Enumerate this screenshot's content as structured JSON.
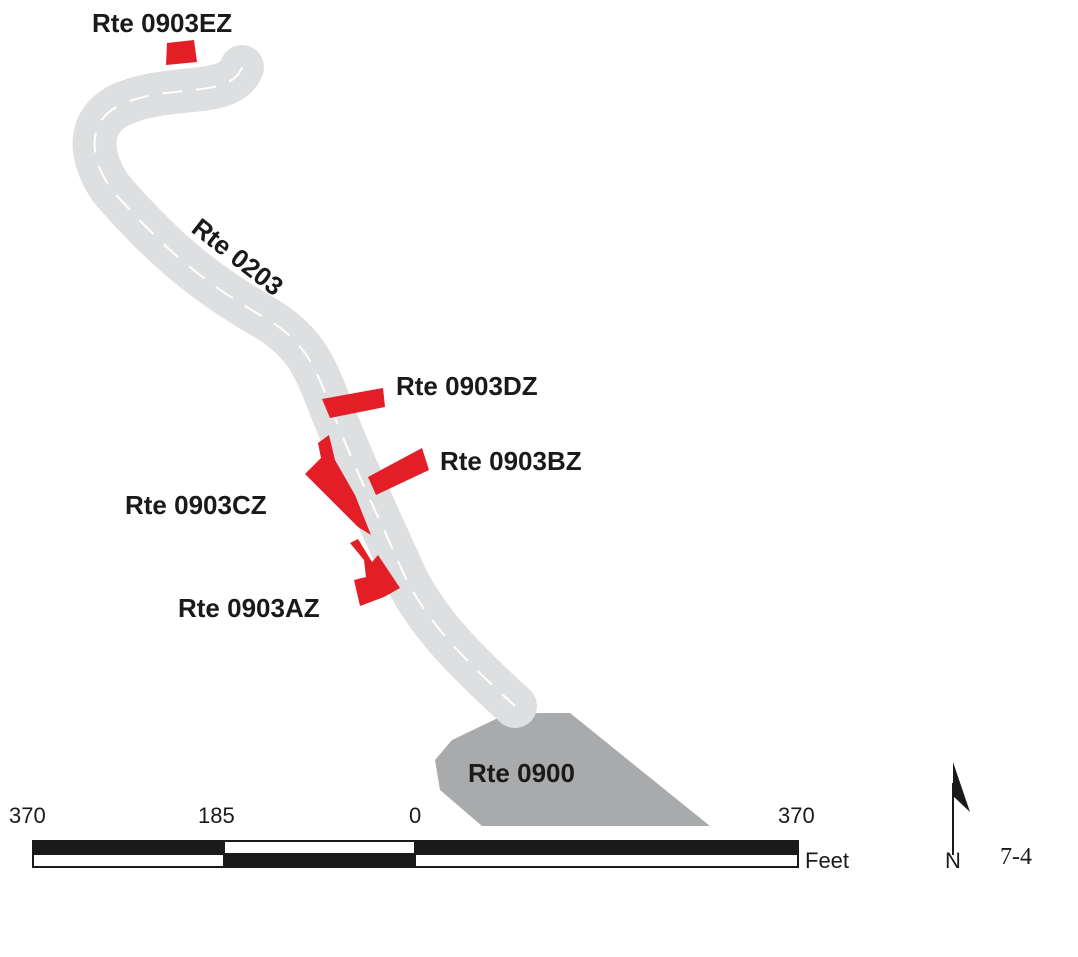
{
  "map": {
    "labels": {
      "route_0903ez": "Rte 0903EZ",
      "route_0203": "Rte 0203",
      "route_0903dz": "Rte 0903DZ",
      "route_0903bz": "Rte 0903BZ",
      "route_0903cz": "Rte 0903CZ",
      "route_0903az": "Rte 0903AZ",
      "route_0900": "Rte 0900"
    },
    "colors": {
      "road": "#dedfe0",
      "road_dash": "#ffffff",
      "parcel": "#e31e27",
      "area": "#a9aaab",
      "ink": "#1a1a1a"
    }
  },
  "scale_bar": {
    "tick_labels": [
      "370",
      "185",
      "0",
      "370"
    ],
    "unit": "Feet"
  },
  "north_arrow": {
    "label": "N"
  },
  "page_number": "7-4"
}
